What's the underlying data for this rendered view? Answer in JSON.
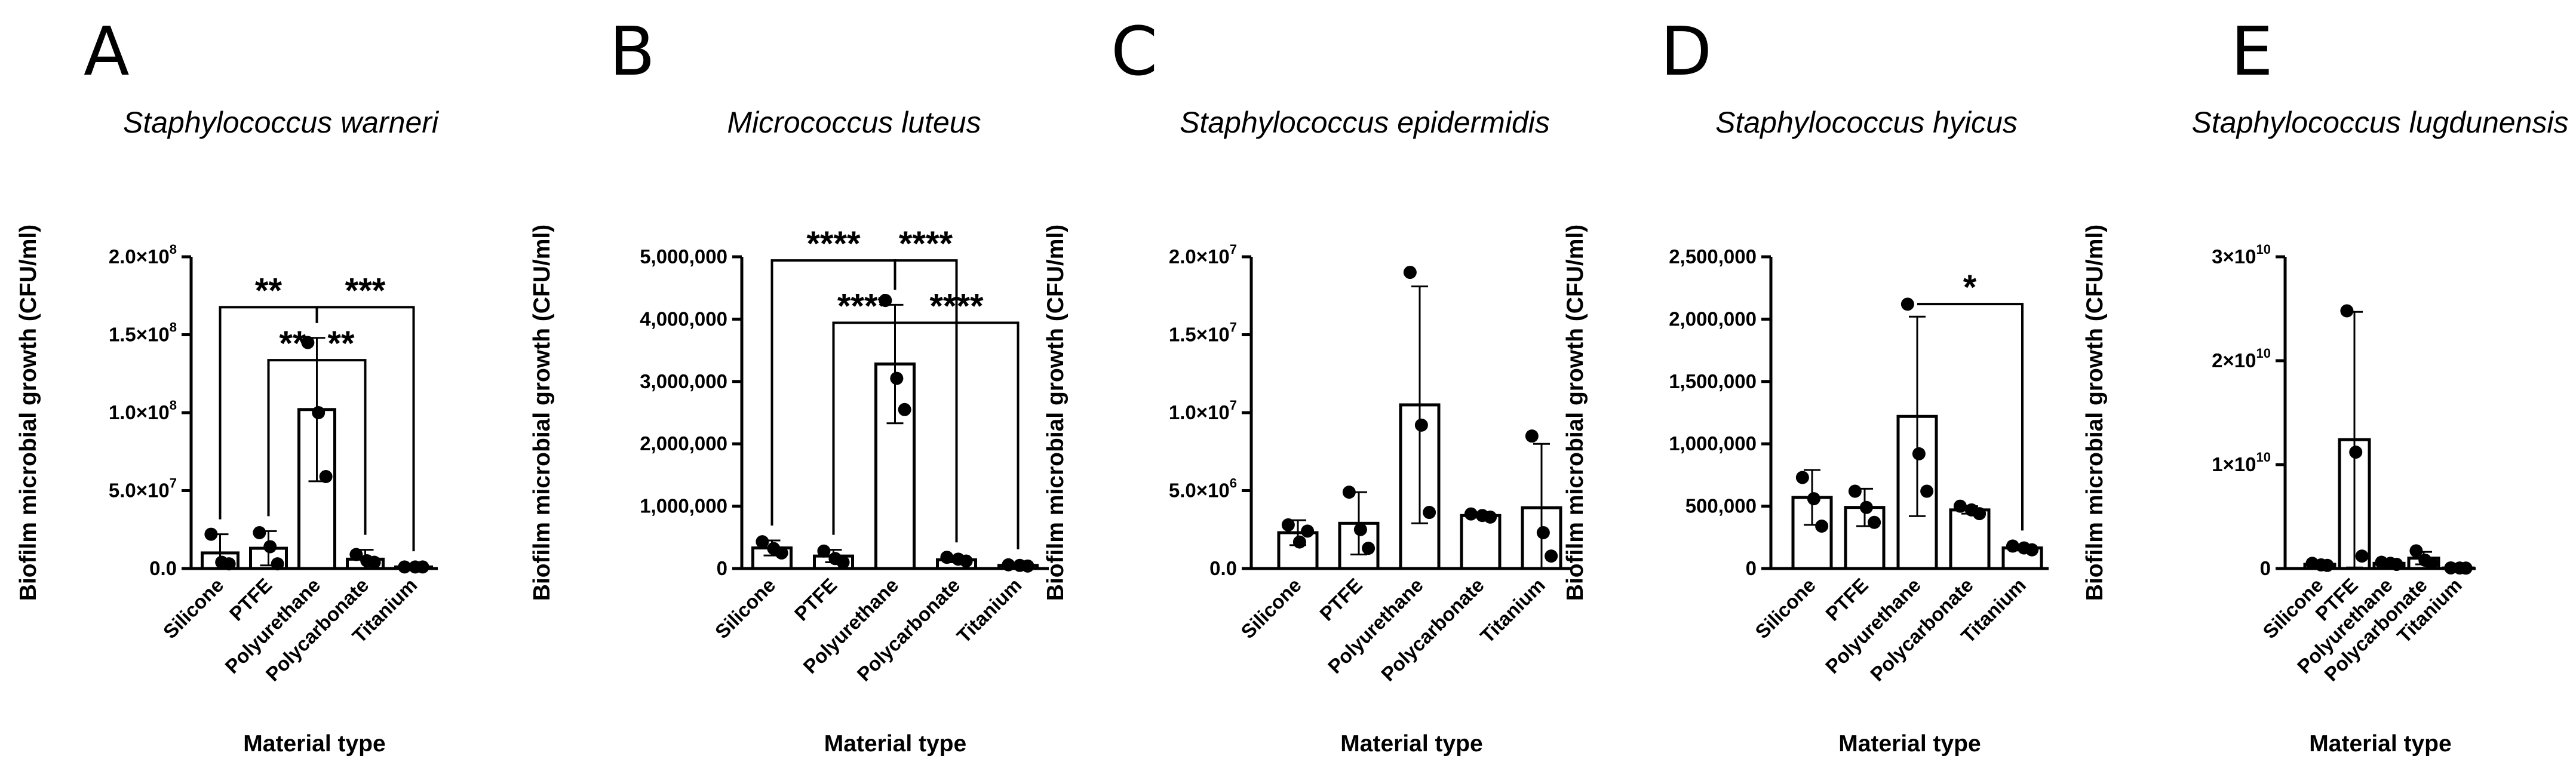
{
  "chart_data": [
    {
      "letter": "A",
      "type": "bar",
      "title": "Staphylococcus warneri",
      "ylabel": "Biofilm microbial growth (CFU/ml)",
      "xlabel": "Material type",
      "categories": [
        "Silicone",
        "PTFE",
        "Polyurethane",
        "Polycarbonate",
        "Titanium"
      ],
      "ylim": [
        0,
        200000000
      ],
      "ticks": [
        {
          "value": 0,
          "label": "0.0"
        },
        {
          "value": 50000000,
          "label": "5.0×10",
          "exp": "7"
        },
        {
          "value": 100000000,
          "label": "1.0×10",
          "exp": "8"
        },
        {
          "value": 150000000,
          "label": "1.5×10",
          "exp": "8"
        },
        {
          "value": 200000000,
          "label": "2.0×10",
          "exp": "8"
        }
      ],
      "values": [
        10000000,
        13000000,
        102000000,
        6000000,
        1000000
      ],
      "errors": [
        12000000,
        11000000,
        46000000,
        6000000,
        500000
      ],
      "points": [
        [
          22000000,
          4000000,
          3000000
        ],
        [
          23000000,
          14000000,
          3000000
        ],
        [
          145000000,
          100000000,
          59000000
        ],
        [
          9000000,
          5000000,
          4000000
        ],
        [
          1000000,
          1000000,
          1000000
        ]
      ],
      "significance": [
        {
          "from": 0,
          "to": 2,
          "level": 0.2,
          "label": "**"
        },
        {
          "from": 2,
          "to": 4,
          "level": 0.2,
          "label": "***"
        },
        {
          "from": 1,
          "to": 2,
          "level": 0.37,
          "label": "**"
        },
        {
          "from": 2,
          "to": 3,
          "level": 0.37,
          "label": "**"
        }
      ]
    },
    {
      "letter": "B",
      "type": "bar",
      "title": "Micrococcus luteus",
      "ylabel": "Biofilm microbial growth (CFU/ml)",
      "xlabel": "Material type",
      "categories": [
        "Silicone",
        "PTFE",
        "Polyurethane",
        "Polycarbonate",
        "Titanium"
      ],
      "ylim": [
        0,
        5000000
      ],
      "ticks": [
        {
          "value": 0,
          "label": "0"
        },
        {
          "value": 1000000,
          "label": "1,000,000"
        },
        {
          "value": 2000000,
          "label": "2,000,000"
        },
        {
          "value": 3000000,
          "label": "3,000,000"
        },
        {
          "value": 4000000,
          "label": "4,000,000"
        },
        {
          "value": 5000000,
          "label": "5,000,000"
        }
      ],
      "values": [
        330000,
        200000,
        3280000,
        140000,
        50000
      ],
      "errors": [
        120000,
        100000,
        950000,
        40000,
        20000
      ],
      "points": [
        [
          430000,
          320000,
          250000
        ],
        [
          280000,
          160000,
          100000
        ],
        [
          4300000,
          3050000,
          2550000
        ],
        [
          180000,
          150000,
          120000
        ],
        [
          60000,
          50000,
          40000
        ]
      ],
      "significance": [
        {
          "from": 0,
          "to": 2,
          "level": 0.05,
          "label": "****"
        },
        {
          "from": 2,
          "to": 3,
          "level": 0.05,
          "label": "****"
        },
        {
          "from": 1,
          "to": 2,
          "level": 0.25,
          "label": "****"
        },
        {
          "from": 2,
          "to": 4,
          "level": 0.25,
          "label": "****"
        }
      ]
    },
    {
      "letter": "C",
      "type": "bar",
      "title": "Staphylococcus epidermidis",
      "ylabel": "Biofilm microbial growth (CFU/ml)",
      "xlabel": "Material type",
      "categories": [
        "Silicone",
        "PTFE",
        "Polyurethane",
        "Polycarbonate",
        "Titanium"
      ],
      "ylim": [
        0,
        20000000
      ],
      "ticks": [
        {
          "value": 0,
          "label": "0.0"
        },
        {
          "value": 5000000,
          "label": "5.0×10",
          "exp": "6"
        },
        {
          "value": 10000000,
          "label": "1.0×10",
          "exp": "7"
        },
        {
          "value": 15000000,
          "label": "1.5×10",
          "exp": "7"
        },
        {
          "value": 20000000,
          "label": "2.0×10",
          "exp": "7"
        }
      ],
      "values": [
        2300000,
        2900000,
        10500000,
        3400000,
        3900000
      ],
      "errors": [
        800000,
        2000000,
        7600000,
        100000,
        4100000
      ],
      "points": [
        [
          2800000,
          1700000,
          2400000
        ],
        [
          4900000,
          2500000,
          1300000
        ],
        [
          19000000,
          9200000,
          3600000
        ],
        [
          3500000,
          3400000,
          3300000
        ],
        [
          8500000,
          2300000,
          800000
        ]
      ],
      "significance": []
    },
    {
      "letter": "D",
      "type": "bar",
      "title": "Staphylococcus hyicus",
      "ylabel": "Biofilm microbial growth (CFU/ml)",
      "xlabel": "Material type",
      "categories": [
        "Silicone",
        "PTFE",
        "Polyurethane",
        "Polycarbonate",
        "Titanium"
      ],
      "ylim": [
        0,
        2500000
      ],
      "ticks": [
        {
          "value": 0,
          "label": "0"
        },
        {
          "value": 500000,
          "label": "500,000"
        },
        {
          "value": 1000000,
          "label": "1,000,000"
        },
        {
          "value": 1500000,
          "label": "1,500,000"
        },
        {
          "value": 2000000,
          "label": "2,000,000"
        },
        {
          "value": 2500000,
          "label": "2,500,000"
        }
      ],
      "values": [
        570000,
        490000,
        1220000,
        470000,
        165000
      ],
      "errors": [
        220000,
        150000,
        800000,
        30000,
        20000
      ],
      "points": [
        [
          730000,
          560000,
          340000
        ],
        [
          620000,
          490000,
          370000
        ],
        [
          2120000,
          920000,
          620000
        ],
        [
          500000,
          470000,
          440000
        ],
        [
          180000,
          165000,
          150000
        ]
      ],
      "significance": [
        {
          "from": 2,
          "to": 4,
          "level": 0.19,
          "label": "*"
        }
      ]
    },
    {
      "letter": "E",
      "type": "bar",
      "title": "Staphylococcus lugdunensis",
      "ylabel": "Biofilm microbial growth (CFU/ml)",
      "xlabel": "Material type",
      "categories": [
        "Silicone",
        "PTFE",
        "Polyurethane",
        "Polycarbonate",
        "Titanium"
      ],
      "ylim": [
        0,
        30000000000
      ],
      "ticks": [
        {
          "value": 0,
          "label": "0"
        },
        {
          "value": 10000000000,
          "label": "1×10",
          "exp": "10"
        },
        {
          "value": 20000000000,
          "label": "2×10",
          "exp": "10"
        },
        {
          "value": 30000000000,
          "label": "3×10",
          "exp": "10"
        }
      ],
      "values": [
        400000000,
        12400000000,
        500000000,
        1000000000,
        50000000
      ],
      "errors": [
        150000000,
        12300000000,
        150000000,
        600000000,
        20000000
      ],
      "points": [
        [
          500000000,
          350000000,
          300000000
        ],
        [
          24800000000,
          11200000000,
          1200000000
        ],
        [
          600000000,
          500000000,
          400000000
        ],
        [
          1700000000,
          800000000,
          500000000
        ],
        [
          60000000,
          50000000,
          40000000
        ]
      ],
      "significance": []
    }
  ]
}
